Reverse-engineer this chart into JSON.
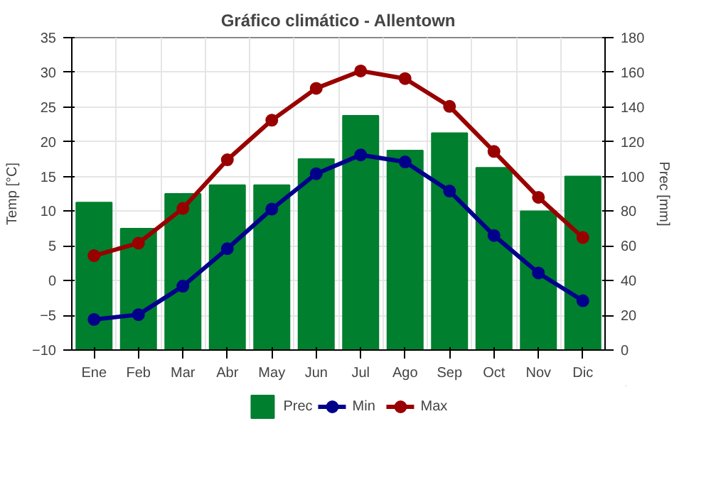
{
  "chart_data": {
    "type": "line",
    "title": "Gráfico climático - Allentown",
    "ylabel": "Temp [°C]",
    "y2label": "Prec [mm]",
    "categories": [
      "Ene",
      "Feb",
      "Mar",
      "Abr",
      "May",
      "Jun",
      "Jul",
      "Ago",
      "Sep",
      "Oct",
      "Nov",
      "Dic"
    ],
    "series": [
      {
        "name": "Prec",
        "type": "bar",
        "axis": "y2",
        "color": "#007f2f",
        "values": [
          85,
          70,
          90,
          95,
          95,
          110,
          135,
          115,
          125,
          105,
          80,
          100
        ]
      },
      {
        "name": "Min",
        "color": "#00008b",
        "values": [
          -5.6,
          -4.9,
          -0.8,
          4.6,
          10.3,
          15.4,
          18.1,
          17.1,
          12.9,
          6.5,
          1.1,
          -2.9
        ]
      },
      {
        "name": "Max",
        "color": "#990000",
        "values": [
          3.6,
          5.4,
          10.4,
          17.4,
          23.1,
          27.7,
          30.2,
          29.1,
          25.1,
          18.6,
          12.0,
          6.2
        ]
      }
    ],
    "ylim": [
      -10,
      35
    ],
    "yticks": [
      -10,
      -5,
      0,
      5,
      10,
      15,
      20,
      25,
      30,
      35
    ],
    "y2lim": [
      0,
      180
    ],
    "y2ticks": [
      0,
      20,
      40,
      60,
      80,
      100,
      120,
      140,
      160,
      180
    ],
    "grid": true,
    "legend": "bottom",
    "marker": "circle",
    "line_style": "solid"
  }
}
